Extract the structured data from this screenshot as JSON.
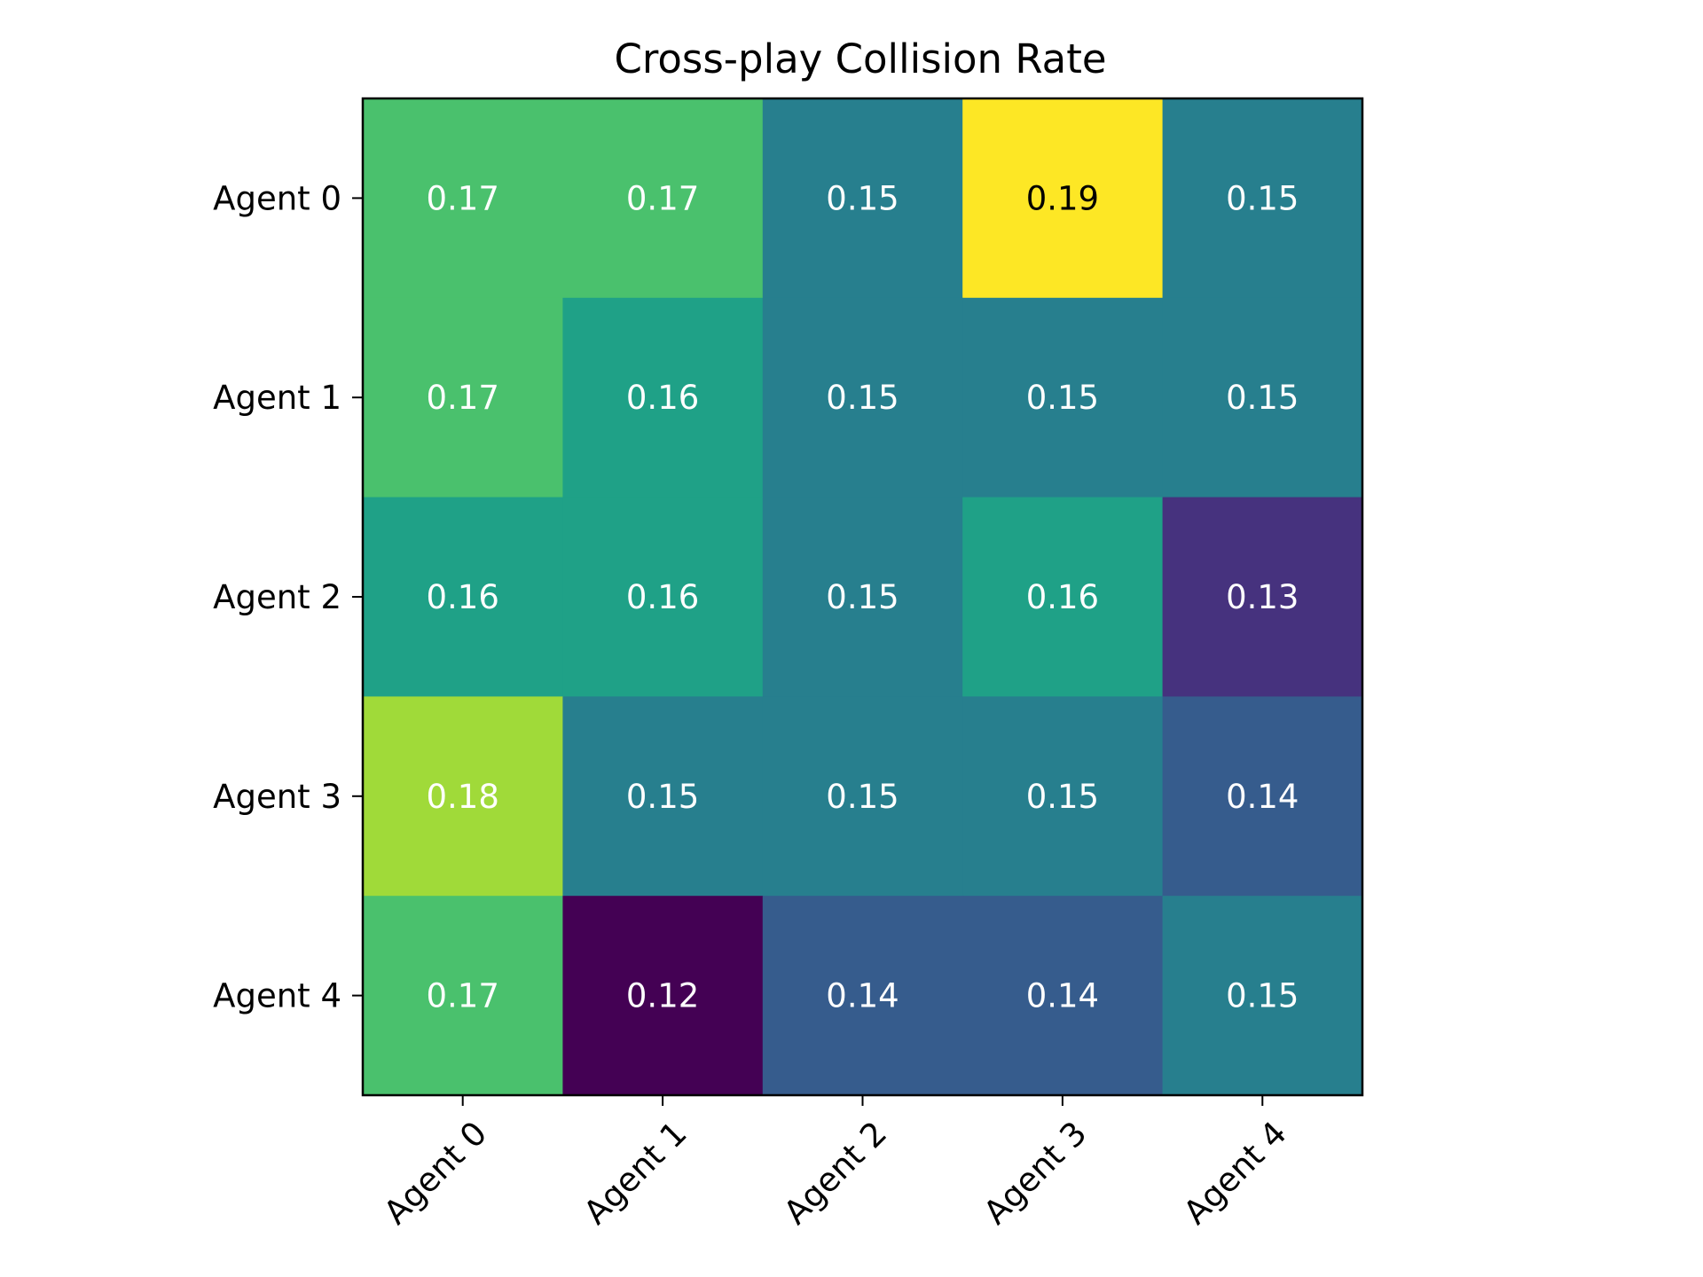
{
  "chart_data": {
    "type": "heatmap",
    "title": "Cross-play Collision Rate",
    "xlabel": "",
    "ylabel": "",
    "x_categories": [
      "Agent 0",
      "Agent 1",
      "Agent 2",
      "Agent 3",
      "Agent 4"
    ],
    "y_categories": [
      "Agent 0",
      "Agent 1",
      "Agent 2",
      "Agent 3",
      "Agent 4"
    ],
    "values": [
      [
        0.17,
        0.17,
        0.15,
        0.19,
        0.15
      ],
      [
        0.17,
        0.16,
        0.15,
        0.15,
        0.15
      ],
      [
        0.16,
        0.16,
        0.15,
        0.16,
        0.13
      ],
      [
        0.18,
        0.15,
        0.15,
        0.15,
        0.14
      ],
      [
        0.17,
        0.12,
        0.14,
        0.14,
        0.15
      ]
    ],
    "cell_labels": [
      [
        "0.17",
        "0.17",
        "0.15",
        "0.19",
        "0.15"
      ],
      [
        "0.17",
        "0.16",
        "0.15",
        "0.15",
        "0.15"
      ],
      [
        "0.16",
        "0.16",
        "0.15",
        "0.16",
        "0.13"
      ],
      [
        "0.18",
        "0.15",
        "0.15",
        "0.15",
        "0.14"
      ],
      [
        "0.17",
        "0.12",
        "0.14",
        "0.14",
        "0.15"
      ]
    ],
    "colormap": "viridis",
    "color_scale": [
      {
        "value": 0.12,
        "color": "#440154"
      },
      {
        "value": 0.13,
        "color": "#46327e"
      },
      {
        "value": 0.14,
        "color": "#365c8d"
      },
      {
        "value": 0.15,
        "color": "#277f8e"
      },
      {
        "value": 0.16,
        "color": "#1fa187"
      },
      {
        "value": 0.17,
        "color": "#4ac16d"
      },
      {
        "value": 0.18,
        "color": "#a0da39"
      },
      {
        "value": 0.19,
        "color": "#fde725"
      }
    ],
    "text_colors": {
      "light": "#ffffff",
      "dark": "#000000"
    },
    "dark_text_threshold": 0.185
  }
}
